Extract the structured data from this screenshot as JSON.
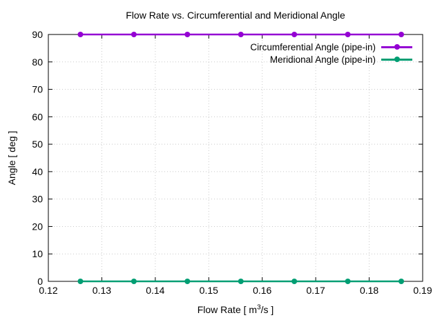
{
  "window": {
    "background_color": "#ffffff",
    "text_color": "#000000"
  },
  "chart_data": {
    "type": "line",
    "title": "Flow Rate vs. Circumferential and Meridional Angle",
    "xlabel_plain": "Flow Rate [ m^3/s ]",
    "xlabel_parts": {
      "prefix": "Flow Rate [ m",
      "superscript": "3",
      "suffix": "/s ]"
    },
    "ylabel": "Angle [ deg ]",
    "xlim": [
      0.12,
      0.19
    ],
    "ylim": [
      0,
      90
    ],
    "x_ticks": {
      "values": [
        0.12,
        0.13,
        0.14,
        0.15,
        0.16,
        0.17,
        0.18,
        0.19
      ],
      "labels": [
        "0.12",
        "0.13",
        "0.14",
        "0.15",
        "0.16",
        "0.17",
        "0.18",
        "0.19"
      ]
    },
    "y_ticks": {
      "values": [
        0,
        10,
        20,
        30,
        40,
        50,
        60,
        70,
        80,
        90
      ],
      "labels": [
        "0",
        "10",
        "20",
        "30",
        "40",
        "50",
        "60",
        "70",
        "80",
        "90"
      ]
    },
    "grid": {
      "enabled": true,
      "style": "dotted",
      "color": "#c8c8c8"
    },
    "axis_color": "#000000",
    "legend_position": "top-right-inside",
    "x": [
      0.126,
      0.136,
      0.146,
      0.156,
      0.166,
      0.176,
      0.186
    ],
    "series": [
      {
        "name": "Circumferential Angle (pipe-in)",
        "color": "#9400d3",
        "marker": "filled-circle",
        "values": [
          90,
          90,
          90,
          90,
          90,
          90,
          90
        ]
      },
      {
        "name": "Meridional Angle (pipe-in)",
        "color": "#009e73",
        "marker": "filled-circle",
        "values": [
          0,
          0,
          0,
          0,
          0,
          0,
          0
        ]
      }
    ]
  }
}
